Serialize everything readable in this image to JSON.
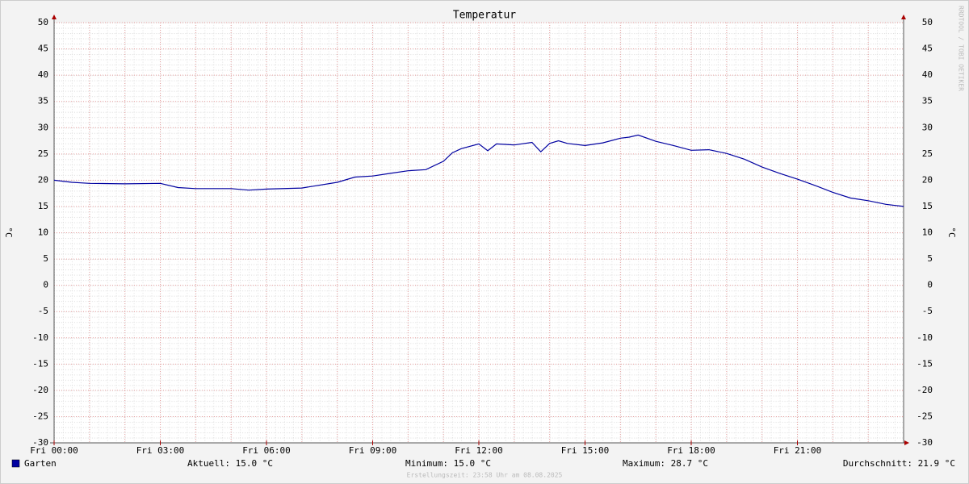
{
  "chart_data": {
    "type": "line",
    "title": "Temperatur",
    "y_label": "°C",
    "x": [
      0,
      0.5,
      1,
      2,
      3,
      3.5,
      4,
      5,
      5.5,
      6,
      7,
      8,
      8.5,
      9,
      9.5,
      10,
      10.5,
      11,
      11.25,
      11.5,
      12,
      12.25,
      12.5,
      13,
      13.5,
      13.75,
      14,
      14.25,
      14.5,
      15,
      15.5,
      16,
      16.25,
      16.5,
      17,
      17.5,
      18,
      18.5,
      19,
      19.5,
      20,
      20.5,
      21,
      21.5,
      22,
      22.5,
      23,
      23.5,
      24
    ],
    "series": [
      {
        "name": "Garten",
        "color": "#0000a0",
        "values": [
          20.0,
          19.6,
          19.4,
          19.3,
          19.4,
          18.6,
          18.4,
          18.4,
          18.1,
          18.3,
          18.5,
          19.6,
          20.6,
          20.8,
          21.3,
          21.8,
          22.0,
          23.6,
          25.2,
          26.0,
          26.9,
          25.6,
          26.9,
          26.7,
          27.2,
          25.4,
          27.0,
          27.5,
          27.0,
          26.6,
          27.1,
          28.0,
          28.2,
          28.6,
          27.4,
          26.6,
          25.7,
          25.8,
          25.1,
          24.0,
          22.5,
          21.3,
          20.2,
          19.0,
          17.7,
          16.6,
          16.1,
          15.4,
          15.0
        ]
      }
    ],
    "xlim": [
      0,
      24
    ],
    "xticks": [
      {
        "value": 0,
        "label": "Fri 00:00"
      },
      {
        "value": 3,
        "label": "Fri 03:00"
      },
      {
        "value": 6,
        "label": "Fri 06:00"
      },
      {
        "value": 9,
        "label": "Fri 09:00"
      },
      {
        "value": 12,
        "label": "Fri 12:00"
      },
      {
        "value": 15,
        "label": "Fri 15:00"
      },
      {
        "value": 18,
        "label": "Fri 18:00"
      },
      {
        "value": 21,
        "label": "Fri 21:00"
      }
    ],
    "x_major_grid": [
      0,
      1,
      2,
      3,
      4,
      5,
      6,
      7,
      8,
      9,
      10,
      11,
      12,
      13,
      14,
      15,
      16,
      17,
      18,
      19,
      20,
      21,
      22,
      23,
      24
    ],
    "ylim": [
      -30,
      50
    ],
    "yticks": [
      -30,
      -25,
      -20,
      -15,
      -10,
      -5,
      0,
      5,
      10,
      15,
      20,
      25,
      30,
      35,
      40,
      45,
      50
    ],
    "grid": true,
    "legend_stats": [
      "Aktuell: 15.0 °C",
      "Minimum: 15.0 °C",
      "Maximum: 28.7 °C",
      "Durchschnitt: 21.9 °C"
    ],
    "footer": "Erstellungszeit: 23:58 Uhr am 08.08.2025",
    "watermark": "RRDTOOL / TOBI OETIKER"
  }
}
